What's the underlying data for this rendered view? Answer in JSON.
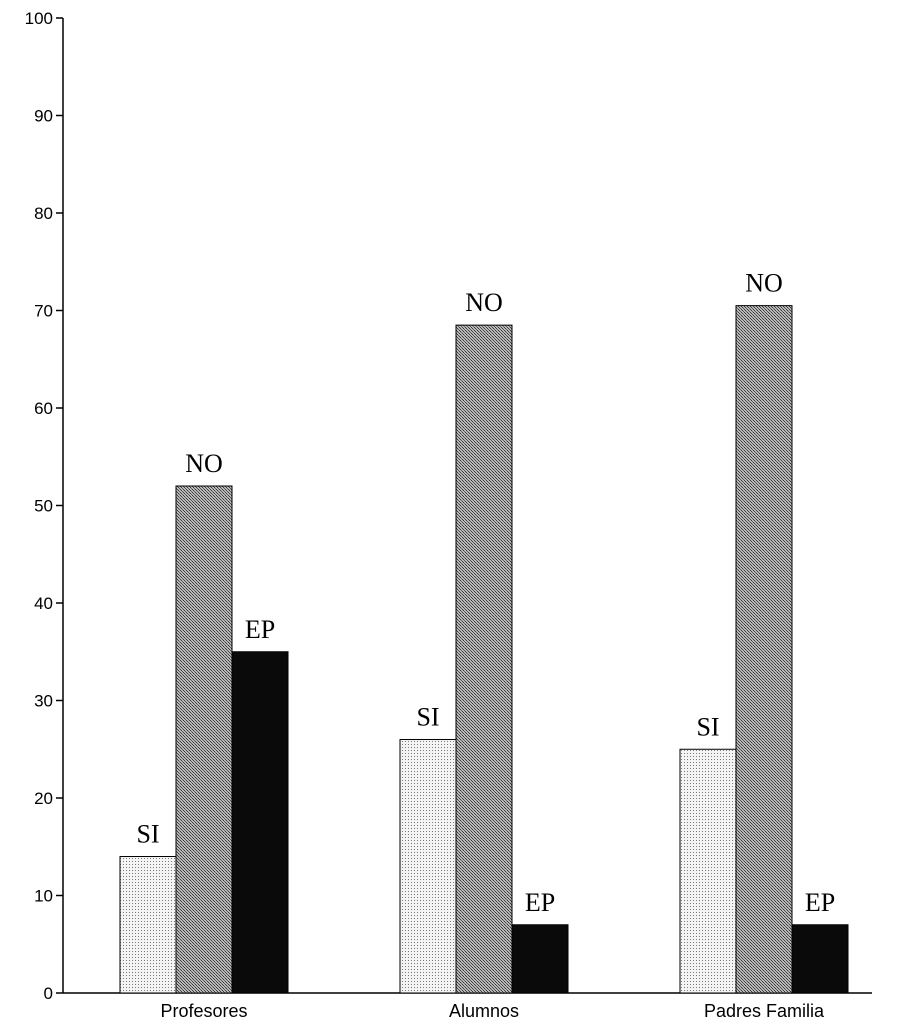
{
  "chart_data": {
    "type": "bar",
    "categories": [
      "Profesores",
      "Alumnos",
      "Padres Familia"
    ],
    "series": [
      {
        "name": "SI",
        "values": [
          14,
          26,
          25
        ],
        "fill": "dots-light"
      },
      {
        "name": "NO",
        "values": [
          52,
          68.5,
          70.5
        ],
        "fill": "crosshatch-gray"
      },
      {
        "name": "EP",
        "values": [
          35,
          7,
          7
        ],
        "fill": "solid-black"
      }
    ],
    "ylim": [
      0,
      100
    ],
    "yticks": [
      0,
      10,
      20,
      30,
      40,
      50,
      60,
      70,
      80,
      90,
      100
    ],
    "title": "",
    "xlabel": "",
    "ylabel": "",
    "grid": false,
    "legend": "none",
    "colors": {
      "axis": "#000000",
      "si": "#e6e6e6",
      "no": "#8a8a8a",
      "ep": "#0a0a0a"
    }
  }
}
